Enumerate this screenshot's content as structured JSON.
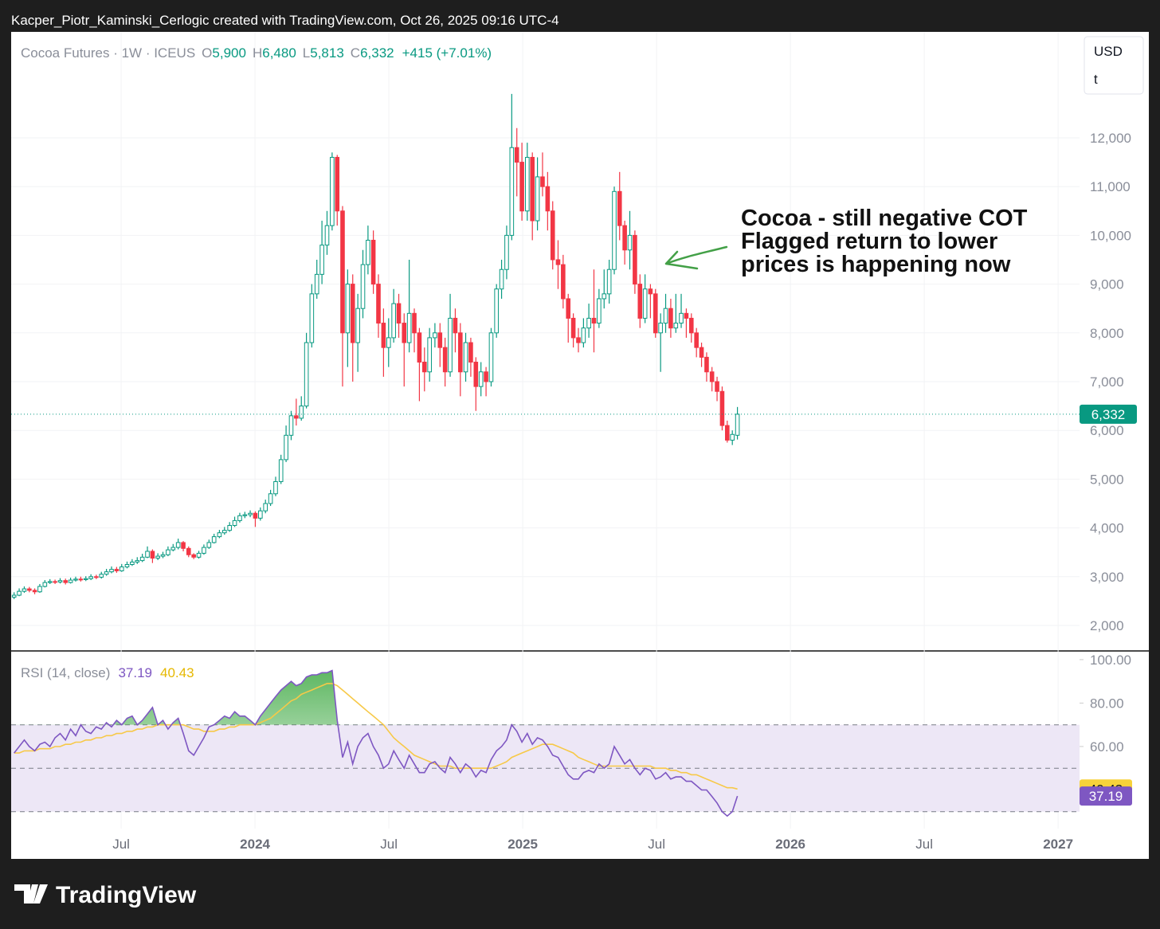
{
  "header": "Kacper_Piotr_Kaminski_Cerlogic created with TradingView.com, Oct 26, 2025 09:16 UTC-4",
  "branding": {
    "currency": "USD",
    "unit": "t",
    "logo": "TradingView"
  },
  "chart_data": [
    {
      "type": "candlestick",
      "title": "Cocoa Futures · 1W · ICEUS",
      "ohlc_legend": {
        "labels": [
          "O",
          "H",
          "L",
          "C"
        ],
        "values": [
          5900,
          6480,
          5813,
          6332
        ],
        "value_labels": [
          "5,900",
          "6,480",
          "5,813",
          "6,332"
        ],
        "change": "+415 (+7.01%)"
      },
      "annotation": [
        "Cocoa - still negative COT",
        "Flagged return to lower",
        "prices is happening now"
      ],
      "up_color": "#089981",
      "down_color": "#f23645",
      "xlim": [
        2023.089,
        2027.08
      ],
      "xticks": [
        {
          "value": 2023.5,
          "label": "Jul"
        },
        {
          "value": 2024,
          "label": "2024"
        },
        {
          "value": 2024.5,
          "label": "Jul"
        },
        {
          "value": 2025,
          "label": "2025"
        },
        {
          "value": 2025.5,
          "label": "Jul"
        },
        {
          "value": 2026,
          "label": "2026"
        },
        {
          "value": 2026.5,
          "label": "Jul"
        },
        {
          "value": 2027,
          "label": "2027"
        }
      ],
      "ylim": [
        1477,
        14173
      ],
      "yticks": [
        {
          "value": 2000,
          "label": "2,000"
        },
        {
          "value": 3000,
          "label": "3,000"
        },
        {
          "value": 4000,
          "label": "4,000"
        },
        {
          "value": 5000,
          "label": "5,000"
        },
        {
          "value": 6000,
          "label": "6,000"
        },
        {
          "value": 7000,
          "label": "7,000"
        },
        {
          "value": 8000,
          "label": "8,000"
        },
        {
          "value": 9000,
          "label": "9,000"
        },
        {
          "value": 10000,
          "label": "10,000"
        },
        {
          "value": 11000,
          "label": "11,000"
        },
        {
          "value": 12000,
          "label": "12,000"
        }
      ],
      "grid": true,
      "x": [
        2023.1,
        2023.119,
        2023.138,
        2023.157,
        2023.177,
        2023.196,
        2023.215,
        2023.234,
        2023.253,
        2023.272,
        2023.292,
        2023.311,
        2023.33,
        2023.349,
        2023.368,
        2023.387,
        2023.407,
        2023.426,
        2023.445,
        2023.464,
        2023.483,
        2023.502,
        2023.522,
        2023.541,
        2023.56,
        2023.579,
        2023.598,
        2023.617,
        2023.637,
        2023.656,
        2023.675,
        2023.694,
        2023.713,
        2023.732,
        2023.752,
        2023.771,
        2023.79,
        2023.809,
        2023.828,
        2023.847,
        2023.867,
        2023.886,
        2023.905,
        2023.924,
        2023.943,
        2023.962,
        2023.982,
        2024.001,
        2024.02,
        2024.039,
        2024.058,
        2024.077,
        2024.097,
        2024.116,
        2024.135,
        2024.154,
        2024.173,
        2024.192,
        2024.212,
        2024.231,
        2024.25,
        2024.269,
        2024.288,
        2024.307,
        2024.327,
        2024.346,
        2024.365,
        2024.384,
        2024.403,
        2024.422,
        2024.442,
        2024.461,
        2024.48,
        2024.499,
        2024.518,
        2024.537,
        2024.557,
        2024.576,
        2024.595,
        2024.614,
        2024.633,
        2024.652,
        2024.672,
        2024.691,
        2024.71,
        2024.729,
        2024.748,
        2024.767,
        2024.787,
        2024.806,
        2024.825,
        2024.844,
        2024.863,
        2024.882,
        2024.902,
        2024.921,
        2024.94,
        2024.959,
        2024.978,
        2024.997,
        2025.017,
        2025.036,
        2025.055,
        2025.074,
        2025.093,
        2025.112,
        2025.132,
        2025.151,
        2025.17,
        2025.189,
        2025.208,
        2025.227,
        2025.247,
        2025.266,
        2025.285,
        2025.304,
        2025.323,
        2025.342,
        2025.362,
        2025.381,
        2025.4,
        2025.419,
        2025.438,
        2025.457,
        2025.477,
        2025.496,
        2025.515,
        2025.534,
        2025.553,
        2025.572,
        2025.592,
        2025.611,
        2025.63,
        2025.649,
        2025.668,
        2025.687,
        2025.707,
        2025.726,
        2025.745,
        2025.764,
        2025.783,
        2025.802
      ],
      "open": [
        2580,
        2620,
        2700,
        2750,
        2720,
        2690,
        2800,
        2880,
        2900,
        2890,
        2920,
        2880,
        2930,
        2950,
        2940,
        2960,
        3000,
        2990,
        3050,
        3100,
        3150,
        3120,
        3200,
        3250,
        3300,
        3330,
        3400,
        3520,
        3380,
        3420,
        3450,
        3550,
        3600,
        3700,
        3580,
        3450,
        3400,
        3480,
        3600,
        3700,
        3820,
        3900,
        3950,
        4050,
        4150,
        4250,
        4270,
        4300,
        4200,
        4350,
        4500,
        4700,
        4950,
        5400,
        5900,
        6300,
        6250,
        6500,
        7800,
        8800,
        9200,
        9800,
        10200,
        11600,
        10500,
        8000,
        9000,
        7800,
        8500,
        9400,
        9900,
        9000,
        8200,
        7700,
        7900,
        8600,
        8200,
        7800,
        8400,
        8000,
        7400,
        7200,
        7900,
        8000,
        7700,
        7200,
        8300,
        8000,
        7200,
        7800,
        7400,
        6900,
        7200,
        7000,
        8000,
        8900,
        9300,
        10000,
        11800,
        11500,
        10500,
        11600,
        10300,
        11200,
        11000,
        10500,
        9500,
        9400,
        8700,
        8300,
        7900,
        7800,
        8100,
        8300,
        8200,
        8700,
        8800,
        9300,
        10900,
        10200,
        9700,
        10000,
        9000,
        8300,
        8900,
        8800,
        8000,
        8200,
        8500,
        8100,
        8200,
        8400,
        8300,
        8000,
        7700,
        7500,
        7200,
        7000,
        6800,
        6100,
        5800,
        5900
      ],
      "high": [
        2680,
        2760,
        2800,
        2790,
        2760,
        2850,
        2930,
        2950,
        2940,
        2970,
        2960,
        2980,
        3000,
        3000,
        3010,
        3050,
        3040,
        3100,
        3160,
        3210,
        3200,
        3260,
        3310,
        3360,
        3400,
        3470,
        3620,
        3560,
        3480,
        3510,
        3620,
        3670,
        3780,
        3730,
        3620,
        3480,
        3530,
        3660,
        3760,
        3880,
        3960,
        4020,
        4120,
        4230,
        4310,
        4330,
        4360,
        4340,
        4420,
        4580,
        4780,
        5050,
        5500,
        6100,
        6400,
        6650,
        6700,
        8000,
        9000,
        9500,
        10300,
        10500,
        11700,
        11650,
        10600,
        9300,
        9200,
        8800,
        9700,
        10200,
        10100,
        9200,
        8500,
        8300,
        8900,
        8800,
        8400,
        9500,
        8500,
        8100,
        7700,
        8100,
        8200,
        8200,
        7900,
        8800,
        8500,
        8200,
        8000,
        7900,
        7500,
        7400,
        7300,
        8100,
        9000,
        9500,
        10200,
        12900,
        12200,
        11900,
        11900,
        11700,
        11600,
        11700,
        11300,
        10700,
        9900,
        9600,
        8800,
        8400,
        8100,
        8300,
        8600,
        9300,
        8900,
        9300,
        9500,
        11000,
        11300,
        10300,
        10500,
        10100,
        9200,
        9200,
        9000,
        8900,
        8400,
        8800,
        8700,
        8800,
        8800,
        8500,
        8400,
        8100,
        7800,
        7600,
        7300,
        7100,
        6900,
        6200,
        6000,
        6480
      ],
      "low": [
        2540,
        2600,
        2670,
        2680,
        2640,
        2670,
        2780,
        2850,
        2850,
        2860,
        2840,
        2860,
        2900,
        2900,
        2910,
        2930,
        2950,
        2960,
        3020,
        3070,
        3080,
        3100,
        3170,
        3220,
        3260,
        3300,
        3380,
        3280,
        3340,
        3380,
        3420,
        3520,
        3560,
        3520,
        3400,
        3360,
        3370,
        3450,
        3570,
        3680,
        3790,
        3860,
        3920,
        4020,
        4110,
        4200,
        4220,
        4020,
        4150,
        4300,
        4450,
        4650,
        4900,
        5350,
        5800,
        6100,
        6200,
        6450,
        7700,
        8700,
        9000,
        9600,
        10100,
        10200,
        6900,
        7300,
        7000,
        7200,
        8300,
        9200,
        8800,
        7900,
        7100,
        7300,
        7800,
        7900,
        6900,
        7600,
        7600,
        6600,
        6800,
        7000,
        7700,
        7300,
        6900,
        7100,
        7600,
        6700,
        7000,
        7100,
        6400,
        6700,
        6700,
        6900,
        7900,
        8700,
        9100,
        9900,
        10800,
        10300,
        10300,
        9900,
        10100,
        10800,
        10100,
        9300,
        8900,
        8500,
        7800,
        7700,
        7600,
        7700,
        7900,
        7600,
        8100,
        8500,
        8600,
        9200,
        9900,
        9400,
        9300,
        8800,
        8100,
        8200,
        8300,
        7900,
        7200,
        8000,
        7900,
        8000,
        8100,
        7900,
        7800,
        7500,
        7300,
        7000,
        6800,
        6600,
        6000,
        5750,
        5700,
        5813
      ],
      "close": [
        2620,
        2700,
        2750,
        2720,
        2690,
        2800,
        2880,
        2900,
        2890,
        2920,
        2880,
        2930,
        2950,
        2940,
        2960,
        3000,
        2990,
        3050,
        3100,
        3150,
        3120,
        3200,
        3250,
        3300,
        3330,
        3400,
        3520,
        3380,
        3420,
        3450,
        3550,
        3600,
        3700,
        3580,
        3450,
        3400,
        3480,
        3600,
        3700,
        3820,
        3900,
        3950,
        4050,
        4150,
        4250,
        4270,
        4300,
        4200,
        4350,
        4500,
        4700,
        4950,
        5400,
        5900,
        6300,
        6250,
        6500,
        7800,
        8800,
        9200,
        9800,
        10200,
        11600,
        10500,
        8000,
        9000,
        7800,
        8500,
        9400,
        9900,
        9000,
        8200,
        7700,
        7900,
        8600,
        8200,
        7800,
        8400,
        8000,
        7400,
        7200,
        7900,
        8000,
        7700,
        7200,
        8300,
        8000,
        7200,
        7800,
        7400,
        6900,
        7200,
        7000,
        8000,
        8900,
        9300,
        10000,
        11800,
        11500,
        10500,
        11600,
        10300,
        11200,
        11000,
        10500,
        9500,
        9400,
        8700,
        8300,
        7900,
        7800,
        8100,
        8300,
        8200,
        8700,
        8800,
        9300,
        10900,
        10200,
        9700,
        10000,
        9000,
        8300,
        8900,
        8800,
        8000,
        8200,
        8500,
        8100,
        8200,
        8400,
        8300,
        8000,
        7700,
        7500,
        7200,
        7000,
        6800,
        6100,
        5800,
        5917,
        6332
      ]
    },
    {
      "type": "line",
      "title": "RSI (14, close)",
      "ylim": [
        22.2,
        104
      ],
      "yticks": [
        {
          "value": 100,
          "label": "100.00"
        },
        {
          "value": 80,
          "label": "80.00"
        },
        {
          "value": 60,
          "label": "60.00"
        }
      ],
      "bands": [
        70,
        50,
        30
      ],
      "band_color": "#ede7f6",
      "overbought_color": "#4caf50",
      "series": [
        {
          "color": "#7e57c2",
          "values": [
            57,
            60,
            63,
            60,
            58,
            61,
            62,
            60,
            64,
            66,
            63,
            68,
            65,
            70,
            67,
            66,
            69,
            68,
            71,
            69,
            72,
            70,
            73,
            74,
            70,
            72,
            75,
            78,
            70,
            72,
            68,
            71,
            73,
            66,
            58,
            56,
            60,
            64,
            69,
            70,
            72,
            74,
            73,
            76,
            74,
            74,
            72,
            70,
            74,
            77,
            80,
            83,
            86,
            88,
            90,
            88,
            89,
            92,
            93,
            93,
            94,
            94,
            95,
            72,
            55,
            62,
            52,
            60,
            64,
            66,
            60,
            56,
            50,
            52,
            58,
            54,
            50,
            56,
            52,
            48,
            48,
            52,
            53,
            50,
            48,
            55,
            52,
            48,
            52,
            50,
            46,
            49,
            48,
            54,
            58,
            60,
            63,
            70,
            67,
            62,
            66,
            61,
            64,
            63,
            60,
            56,
            55,
            51,
            47,
            45,
            45,
            48,
            49,
            48,
            52,
            50,
            52,
            60,
            56,
            52,
            54,
            50,
            47,
            50,
            49,
            45,
            46,
            48,
            45,
            46,
            46,
            44,
            44,
            42,
            40,
            40,
            37,
            34,
            30,
            28,
            30,
            37.19
          ]
        },
        {
          "color": "#f7c948",
          "values": [
            57,
            57,
            58,
            58,
            58,
            59,
            59,
            59,
            60,
            60,
            61,
            61,
            62,
            62,
            63,
            63,
            64,
            64,
            65,
            65,
            66,
            66,
            67,
            67,
            68,
            68,
            69,
            69,
            70,
            70,
            70,
            70,
            70,
            70,
            69,
            68,
            68,
            67,
            67,
            67,
            68,
            68,
            69,
            69,
            70,
            70,
            70,
            70,
            71,
            72,
            73,
            75,
            77,
            79,
            81,
            82,
            84,
            85,
            86,
            87,
            88,
            89,
            89,
            88,
            86,
            84,
            82,
            80,
            78,
            76,
            74,
            72,
            70,
            67,
            64,
            62,
            60,
            58,
            56,
            55,
            54,
            53,
            52,
            51,
            51,
            51,
            50,
            50,
            50,
            50,
            50,
            50,
            50,
            50,
            51,
            52,
            53,
            55,
            56,
            57,
            58,
            59,
            60,
            61,
            61,
            61,
            60,
            59,
            58,
            57,
            55,
            54,
            53,
            52,
            51,
            51,
            51,
            51,
            51,
            51,
            51,
            51,
            51,
            51,
            51,
            50,
            50,
            50,
            49,
            49,
            48,
            48,
            47,
            47,
            46,
            45,
            44,
            43,
            42,
            41,
            41,
            40.43
          ]
        }
      ]
    }
  ]
}
